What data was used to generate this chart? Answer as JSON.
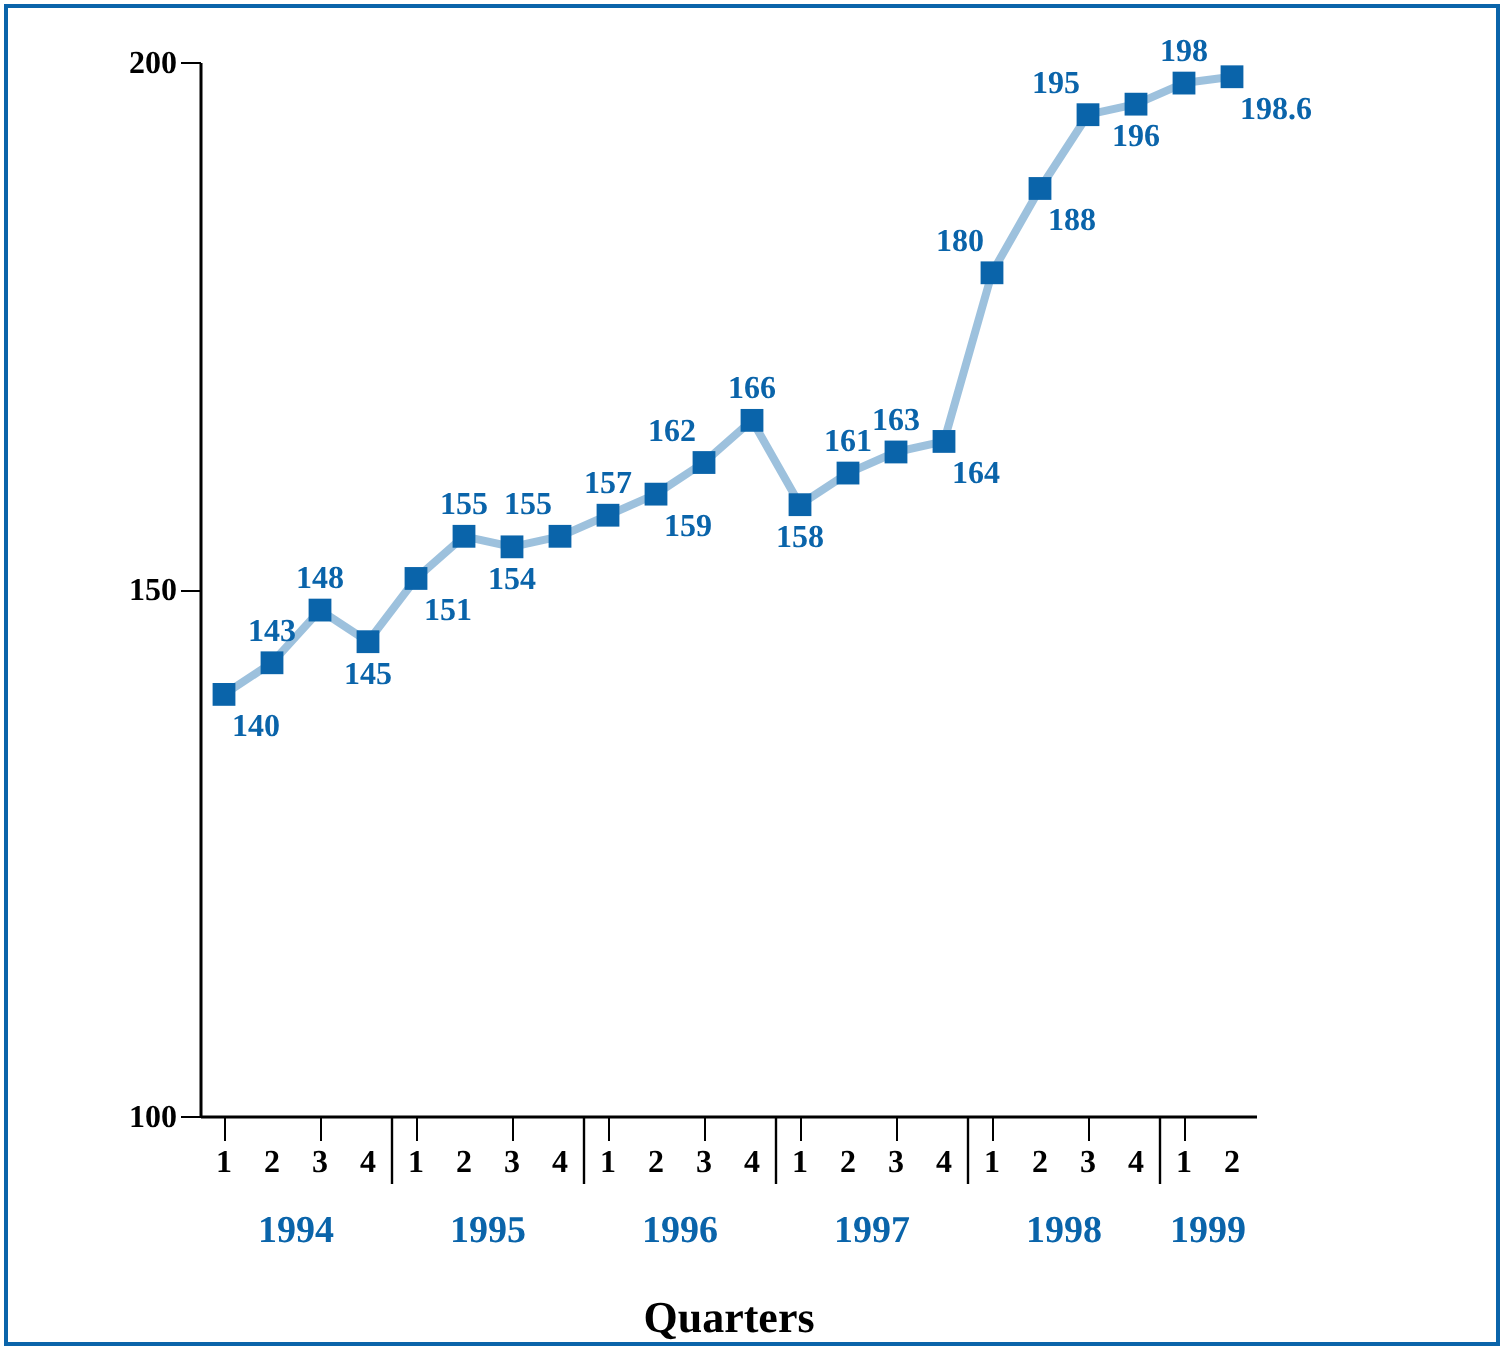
{
  "chart_data": {
    "type": "line",
    "xlabel": "Quarters",
    "categories": [
      "1",
      "2",
      "3",
      "4",
      "1",
      "2",
      "3",
      "4",
      "1",
      "2",
      "3",
      "4",
      "1",
      "2",
      "3",
      "4",
      "1",
      "2",
      "3",
      "4",
      "1",
      "2"
    ],
    "annotations": [
      "1994",
      "1995",
      "1996",
      "1997",
      "1998",
      "1999"
    ],
    "series": [
      {
        "color": "#0a64aa",
        "values": [
          140,
          143,
          148,
          145,
          151,
          155,
          154,
          155,
          157,
          159,
          162,
          166,
          158,
          161,
          163,
          164,
          180,
          188,
          195,
          196,
          198,
          198.6
        ]
      }
    ],
    "ylim": [
      100,
      200
    ],
    "yticks": [
      100,
      150,
      200
    ],
    "marker": "square",
    "data_labels": true,
    "grid": false
  }
}
